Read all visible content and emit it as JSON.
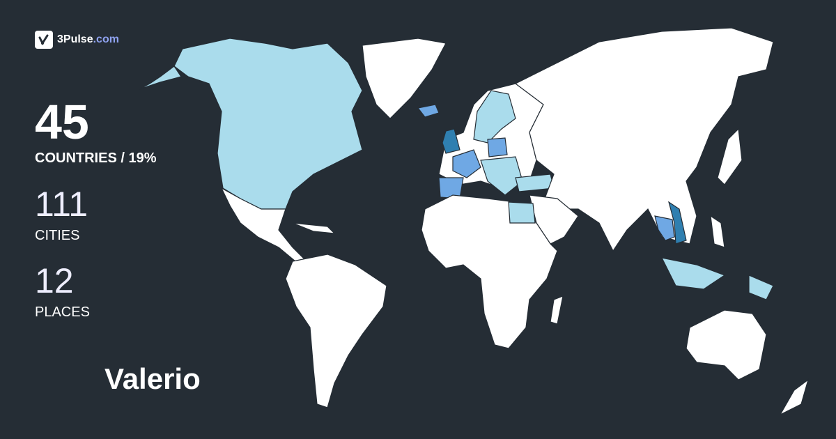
{
  "brand": {
    "name": "3Pulse",
    "tld": ".com",
    "icon": "pulse-check-icon"
  },
  "stats": {
    "countries_value": "45",
    "countries_label": "COUNTRIES / 19%",
    "cities_value": "111",
    "cities_label": "CITIES",
    "places_value": "12",
    "places_label": "PLACES"
  },
  "user": {
    "name": "Valerio"
  },
  "colors": {
    "background": "#252d35",
    "unvisited": "#ffffff",
    "visited_light": "#aadcec",
    "visited_medium": "#6fa8e4",
    "visited_dark": "#2f7fb0",
    "brand_accent": "#8fa2f0"
  }
}
